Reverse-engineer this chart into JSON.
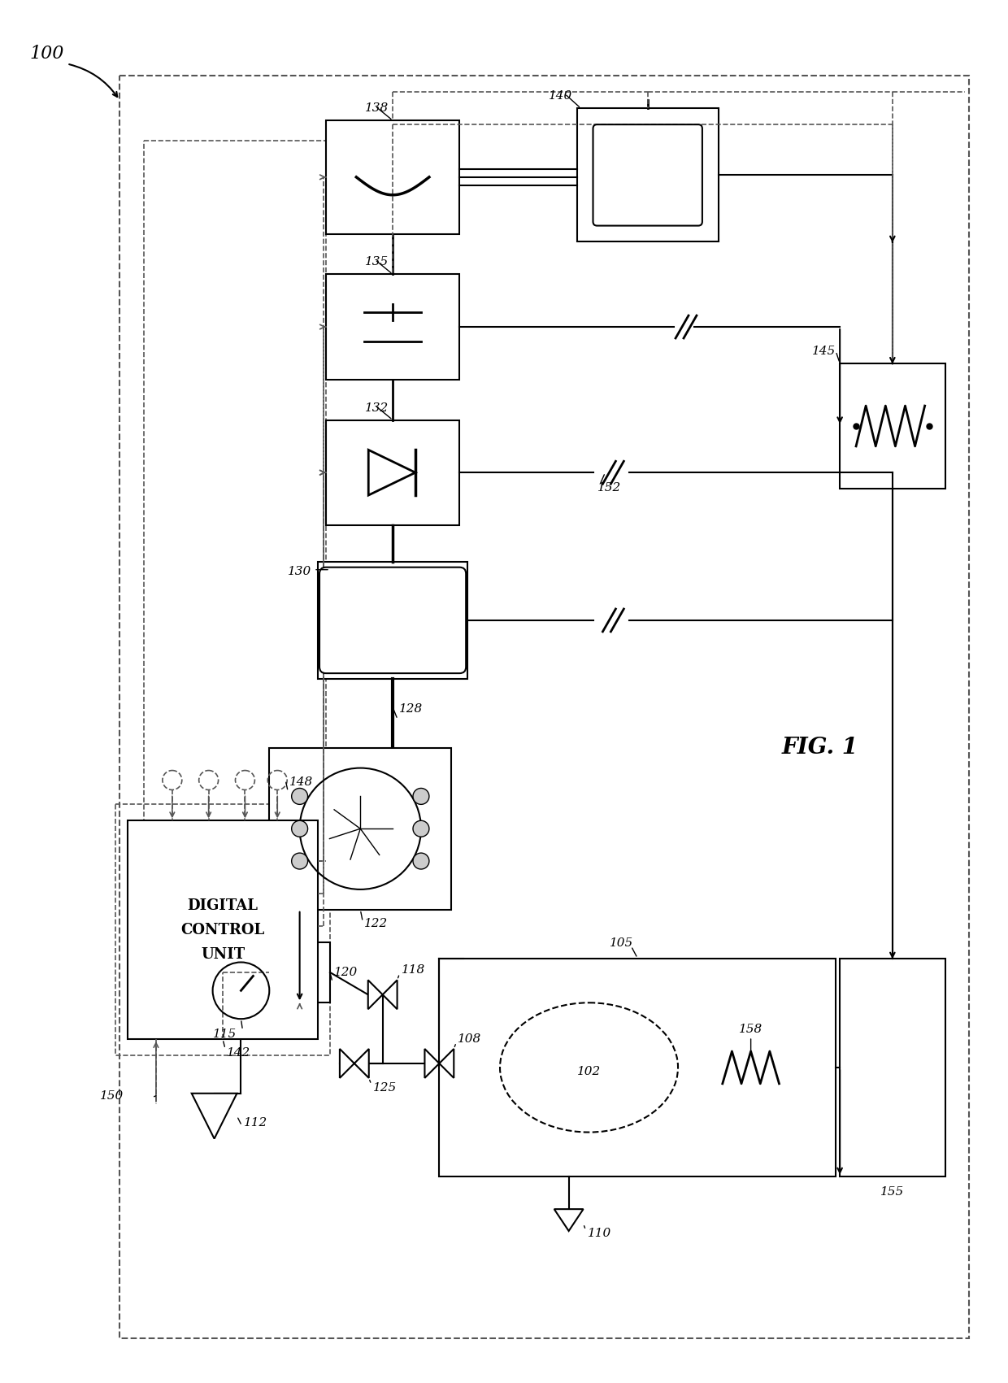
{
  "title": "FIG. 1",
  "bg_color": "#ffffff",
  "lc": "#000000",
  "dc": "#555555",
  "labels": {
    "100": "100",
    "102": "102",
    "105": "105",
    "108": "108",
    "110": "110",
    "112": "112",
    "115": "115",
    "118": "118",
    "120": "120",
    "122": "122",
    "125": "125",
    "128": "128",
    "130": "130",
    "132": "132",
    "135": "135",
    "138": "138",
    "140": "140",
    "142": "142",
    "145": "145",
    "148": "148",
    "150": "150",
    "152": "152",
    "155": "155",
    "158": "158"
  },
  "figsize": [
    12.4,
    17.01
  ],
  "dpi": 100
}
